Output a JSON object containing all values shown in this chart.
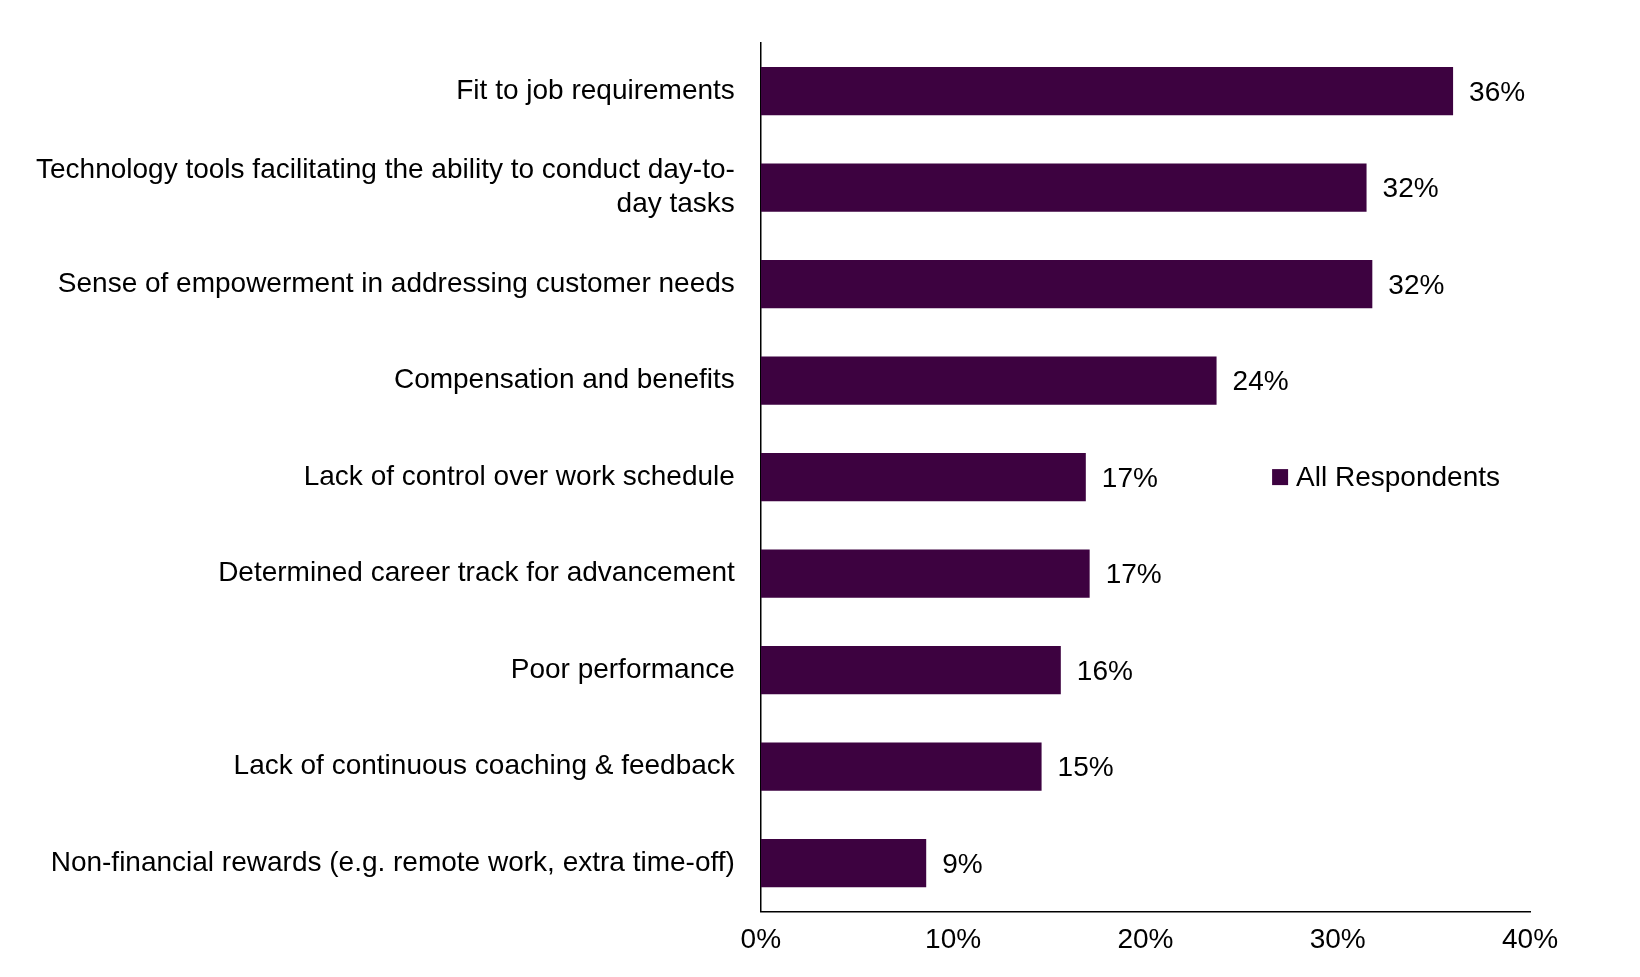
{
  "chart_data": {
    "type": "bar",
    "orientation": "horizontal",
    "categories": [
      "Fit to job requirements",
      "Technology tools facilitating the ability to conduct day-to-day tasks",
      "Sense of empowerment in addressing customer needs",
      "Compensation and benefits",
      "Lack of control over work schedule",
      "Determined career track for advancement",
      "Poor performance",
      "Lack of continuous coaching & feedback",
      "Non-financial rewards (e.g. remote work, extra time-off)"
    ],
    "series": [
      {
        "name": "All Respondents",
        "color": "#3d0240",
        "values": [
          36.0,
          31.5,
          31.8,
          23.7,
          16.9,
          17.1,
          15.6,
          14.6,
          8.6
        ],
        "value_labels": [
          "36%",
          "32%",
          "32%",
          "24%",
          "17%",
          "17%",
          "16%",
          "15%",
          "9%"
        ]
      }
    ],
    "xlim": [
      0,
      40
    ],
    "xticks": [
      {
        "value": 0,
        "label": "0%"
      },
      {
        "value": 10,
        "label": "10%"
      },
      {
        "value": 20,
        "label": "20%"
      },
      {
        "value": 30,
        "label": "30%"
      },
      {
        "value": 40,
        "label": "40%"
      }
    ],
    "grid": false,
    "legend": "right"
  }
}
